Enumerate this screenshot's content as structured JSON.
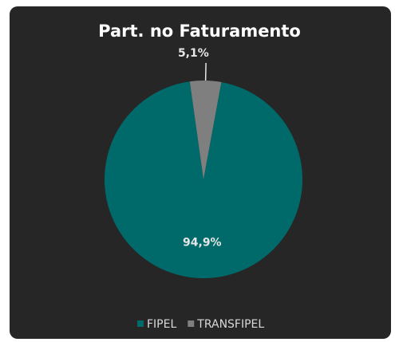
{
  "chart_data": {
    "type": "pie",
    "title": "Part. no Faturamento",
    "categories": [
      "FIPEL",
      "TRANSFIPEL"
    ],
    "values": [
      94.9,
      5.1
    ],
    "value_labels": [
      "94,9%",
      "5,1%"
    ],
    "colors": [
      "#006a6a",
      "#7f7f7f"
    ],
    "legend": "bottom"
  }
}
